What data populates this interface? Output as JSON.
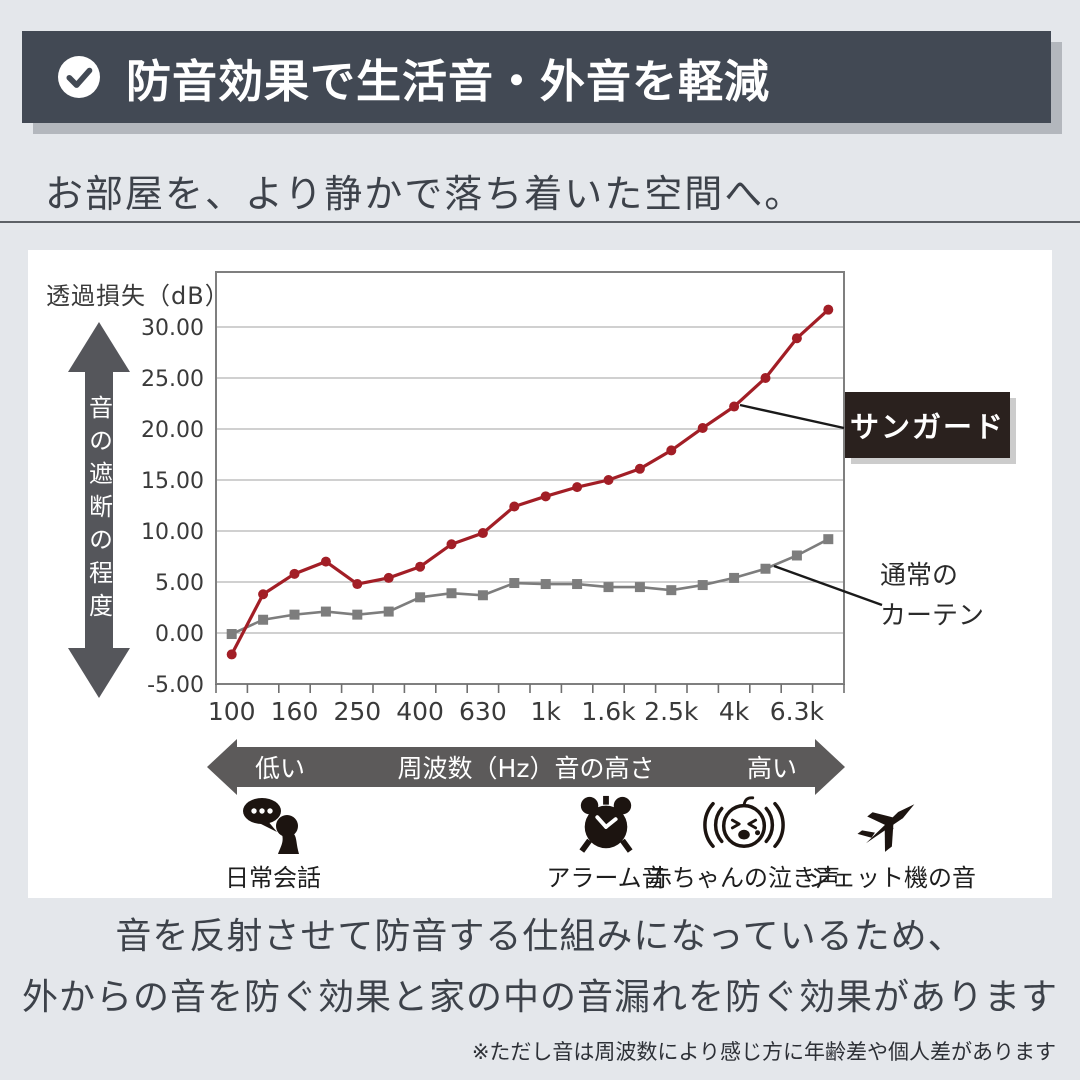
{
  "header": {
    "title": "防音効果で生活音・外音を軽減",
    "check_icon": "check-icon"
  },
  "subtitle": "お部屋を、より静かで落ち着いた空間へ。",
  "chart_data": {
    "type": "line",
    "y_axis_title": "透過損失（dB）",
    "y_ticks": [
      "30.00",
      "25.00",
      "20.00",
      "15.00",
      "10.00",
      "5.00",
      "0.00",
      "-5.00"
    ],
    "y_tick_values": [
      30,
      25,
      20,
      15,
      10,
      5,
      0,
      -5
    ],
    "ylim": [
      -5,
      35.4
    ],
    "x_tick_labels": [
      "100",
      "160",
      "250",
      "400",
      "630",
      "1k",
      "1.6k",
      "2.5k",
      "4k",
      "6.3k"
    ],
    "points_per_label": 2,
    "grid": true,
    "series": [
      {
        "name": "通常のカーテン",
        "color": "#7d7d7d",
        "marker": "square",
        "values": [
          -0.1,
          1.3,
          1.8,
          2.1,
          1.8,
          2.1,
          3.5,
          3.9,
          3.7,
          4.9,
          4.8,
          4.8,
          4.5,
          4.5,
          4.2,
          4.7,
          5.4,
          6.3,
          7.6,
          9.2
        ]
      },
      {
        "name": "サンガード",
        "color": "#a21e26",
        "marker": "circle",
        "values": [
          -2.1,
          3.8,
          5.8,
          7.0,
          4.8,
          5.4,
          6.5,
          8.7,
          9.8,
          12.4,
          13.4,
          14.3,
          15.0,
          16.1,
          17.9,
          20.1,
          22.2,
          25.0,
          28.9,
          31.7
        ]
      }
    ],
    "left_axis_arrow_label": "音の遮断の程度",
    "x_axis_arrow": {
      "left": "低い",
      "center": "周波数（Hz）音の高さ",
      "right": "高い"
    }
  },
  "annotations": {
    "sunguard_label": "サンガード",
    "normal_curtain_line1": "通常の",
    "normal_curtain_line2": "カーテン"
  },
  "sound_examples": [
    {
      "icon": "conversation-icon",
      "label": "日常会話"
    },
    {
      "icon": "alarm-clock-icon",
      "label": "アラーム音"
    },
    {
      "icon": "crying-baby-icon",
      "label": "赤ちゃんの泣き声"
    },
    {
      "icon": "jet-plane-icon",
      "label": "ジェット機の音"
    }
  ],
  "footer": {
    "line1": "音を反射させて防音する仕組みになっているため、",
    "line2": "外からの音を防ぐ効果と家の中の音漏れを防ぐ効果があります",
    "note": "※ただし音は周波数により感じ方に年齢差や個人差があります"
  },
  "colors": {
    "background": "#e4e7eb",
    "banner": "#424954",
    "banner_shadow": "#b3b7bd",
    "card": "#ffffff",
    "accent_red": "#a21e26",
    "series_gray": "#7d7d7d",
    "arrow_gray": "#5c5a5a",
    "sunguard_box": "#2a211e",
    "text_dark": "#3d424a"
  }
}
